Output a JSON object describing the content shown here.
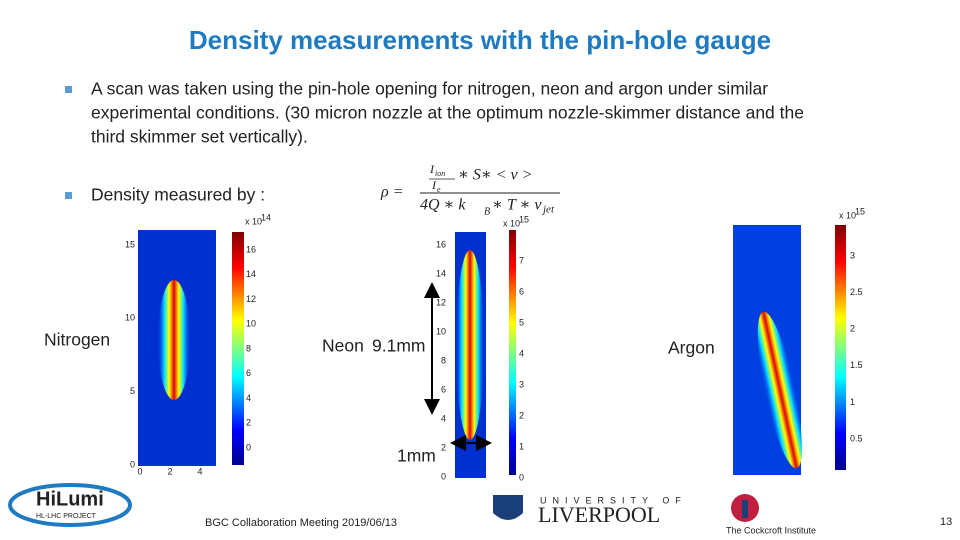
{
  "title": "Density measurements with the pin-hole gauge",
  "bullets": [
    {
      "lines": [
        "A scan was taken using the pin-hole opening for nitrogen, neon and argon under similar",
        "experimental conditions. (30 micron nozzle at the optimum nozzle-skimmer distance and the",
        "third skimmer set vertically)."
      ]
    },
    {
      "lines": [
        "Density measured by :"
      ]
    }
  ],
  "formula": {
    "lhs": "ρ =",
    "num_i": "I",
    "num_i_sub": "ion",
    "den_i": "I",
    "den_i_sub": "e",
    "num_rest": "∗ S∗ < v >",
    "den_a": "4Q ∗ k",
    "den_a_sub": "B",
    "den_b": "∗ T ∗ v",
    "den_b_sub": "jet"
  },
  "plots": [
    {
      "label": "Nitrogen",
      "exp_base": "x 10",
      "exp_power": "14",
      "colorbar_ticks": [
        0,
        2,
        4,
        6,
        8,
        10,
        12,
        14,
        16
      ],
      "y_ticks": [
        0,
        5,
        10,
        15
      ],
      "x_ticks": [
        0,
        2,
        4
      ]
    },
    {
      "label": "Neon",
      "exp_base": "x 10",
      "exp_power": "15",
      "colorbar_ticks": [
        0,
        1,
        2,
        3,
        4,
        5,
        6,
        7
      ],
      "y_ticks": [
        0,
        2,
        4,
        6,
        8,
        10,
        12,
        14,
        16
      ],
      "x_ticks": []
    },
    {
      "label": "Argon",
      "exp_base": "x 10",
      "exp_power": "15",
      "colorbar_ticks": [
        0.5,
        1,
        1.5,
        2,
        2.5,
        3
      ],
      "y_ticks": [],
      "x_ticks": []
    }
  ],
  "annotations": {
    "height": "9.1mm",
    "width": "1mm"
  },
  "footer": {
    "meeting": "BGC Collaboration Meeting 2019/06/13",
    "page": "13",
    "hilumi": "HiLumi",
    "hilumi_sub": "HL-LHC PROJECT",
    "liverpool_top": "UNIVERSITY OF",
    "liverpool": "LIVERPOOL",
    "cockcroft": "The Cockcroft Institute"
  }
}
